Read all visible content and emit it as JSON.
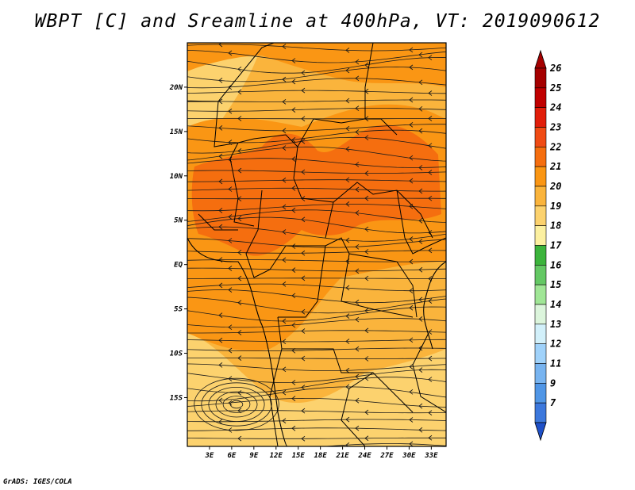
{
  "title": "WBPT [C] and Sreamline at 400hPa, VT: 2019090612",
  "credit": "GrADS: IGES/COLA",
  "map": {
    "lon_range": [
      0,
      35
    ],
    "lat_range": [
      -20.5,
      25
    ],
    "lat_ticks": [
      {
        "value": 20,
        "label": "20N"
      },
      {
        "value": 15,
        "label": "15N"
      },
      {
        "value": 10,
        "label": "10N"
      },
      {
        "value": 5,
        "label": "5N"
      },
      {
        "value": 0,
        "label": "EQ"
      },
      {
        "value": -5,
        "label": "5S"
      },
      {
        "value": -10,
        "label": "10S"
      },
      {
        "value": -15,
        "label": "15S"
      }
    ],
    "lon_ticks": [
      {
        "value": 3,
        "label": "3E"
      },
      {
        "value": 6,
        "label": "6E"
      },
      {
        "value": 9,
        "label": "9E"
      },
      {
        "value": 12,
        "label": "12E"
      },
      {
        "value": 15,
        "label": "15E"
      },
      {
        "value": 18,
        "label": "18E"
      },
      {
        "value": 21,
        "label": "21E"
      },
      {
        "value": 24,
        "label": "24E"
      },
      {
        "value": 27,
        "label": "27E"
      },
      {
        "value": 30,
        "label": "30E"
      },
      {
        "value": 33,
        "label": "33E"
      }
    ]
  },
  "colorbar": {
    "levels": [
      {
        "label": "26",
        "color": "#a50000"
      },
      {
        "label": "25",
        "color": "#c00000"
      },
      {
        "label": "24",
        "color": "#e11e0a"
      },
      {
        "label": "23",
        "color": "#f04b14"
      },
      {
        "label": "22",
        "color": "#f56e0f"
      },
      {
        "label": "21",
        "color": "#fa9614"
      },
      {
        "label": "20",
        "color": "#fab43c"
      },
      {
        "label": "19",
        "color": "#fcd26e"
      },
      {
        "label": "18",
        "color": "#fcf0a0"
      },
      {
        "label": "17",
        "color": "#3cb43c"
      },
      {
        "label": "16",
        "color": "#64c864"
      },
      {
        "label": "15",
        "color": "#a0e696"
      },
      {
        "label": "14",
        "color": "#dcf5dc"
      },
      {
        "label": "13",
        "color": "#d2f0fa"
      },
      {
        "label": "12",
        "color": "#a0d2fa"
      },
      {
        "label": "11",
        "color": "#78b4f0"
      },
      {
        "label": "9",
        "color": "#5096e6"
      },
      {
        "label": "7",
        "color": "#3c78dc"
      }
    ],
    "bottom_color": "#1e50c8"
  },
  "field_colors": {
    "c19": "#fcd26e",
    "c20": "#fab43c",
    "c21": "#fa9614",
    "c22": "#f56e0f"
  }
}
